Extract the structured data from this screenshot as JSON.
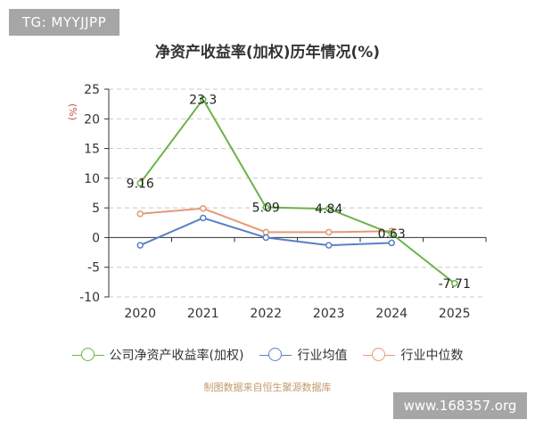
{
  "badge": {
    "text": "TG: MYYJJPP"
  },
  "footer": {
    "source": "制图数据来自恒生聚源数据库"
  },
  "watermark": {
    "text": "www.168357.org"
  },
  "colors": {
    "company": "#6ab34a",
    "industry_avg": "#5b7fc6",
    "industry_median": "#e39a77",
    "grid": "#c8c8c8",
    "axis": "#333333"
  },
  "chart_data": {
    "type": "line",
    "title": "净资产收益率(加权)历年情况(%)",
    "ylabel": "(%)",
    "xlabel": "",
    "categories": [
      "2020",
      "2021",
      "2022",
      "2023",
      "2024",
      "2025"
    ],
    "ylim": [
      -10,
      25
    ],
    "yticks": [
      -10,
      -5,
      0,
      5,
      10,
      15,
      20,
      25
    ],
    "grid": true,
    "legend_position": "bottom",
    "series": [
      {
        "name": "公司净资产收益率(加权)",
        "color": "#6ab34a",
        "values": [
          9.16,
          23.3,
          5.09,
          4.84,
          0.63,
          -7.71
        ],
        "labels": [
          "9.16",
          "23.3",
          "5.09",
          "4.84",
          "0.63",
          "-7.71"
        ]
      },
      {
        "name": "行业均值",
        "color": "#5b7fc6",
        "values": [
          -1.3,
          3.3,
          0.0,
          -1.3,
          -0.9,
          null
        ]
      },
      {
        "name": "行业中位数",
        "color": "#e39a77",
        "values": [
          4.0,
          4.9,
          0.9,
          0.9,
          1.1,
          null
        ]
      }
    ]
  }
}
